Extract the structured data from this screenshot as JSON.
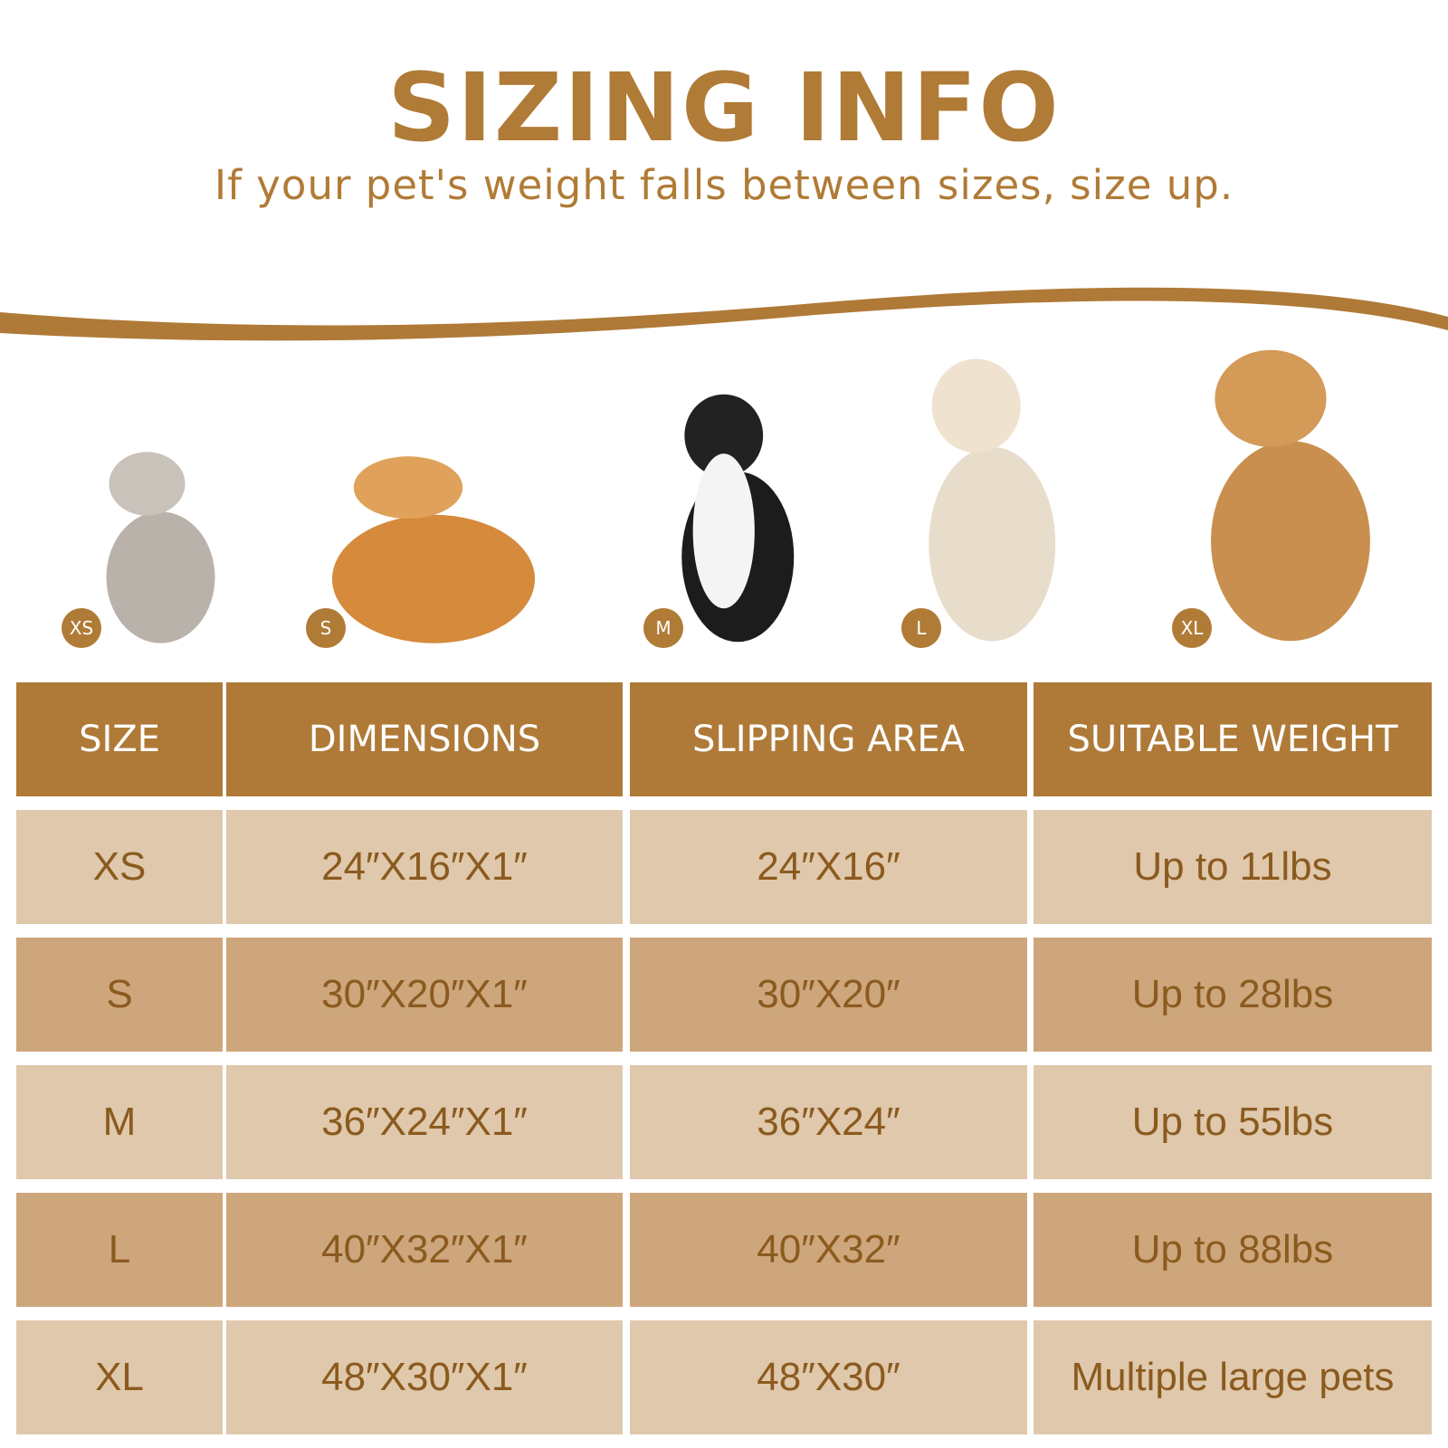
{
  "title": "SIZING INFO",
  "subtitle": "If your pet's weight falls between sizes, size up.",
  "colors": {
    "accent": "#AF7A37",
    "row_light": "#DFC8AB",
    "row_dark": "#CDA67C",
    "cell_text": "#8B5A1E"
  },
  "pets": [
    {
      "badge": "XS",
      "animal": "cat"
    },
    {
      "badge": "S",
      "animal": "corgi"
    },
    {
      "badge": "M",
      "animal": "border-collie"
    },
    {
      "badge": "L",
      "animal": "golden-retriever-light"
    },
    {
      "badge": "XL",
      "animal": "golden-retriever"
    }
  ],
  "table": {
    "headers": [
      "SIZE",
      "DIMENSIONS",
      "SLIPPING AREA",
      "SUITABLE WEIGHT"
    ],
    "rows": [
      [
        "XS",
        "24″X16″X1″",
        "24″X16″",
        "Up to 11lbs"
      ],
      [
        "S",
        "30″X20″X1″",
        "30″X20″",
        "Up to 28lbs"
      ],
      [
        "M",
        "36″X24″X1″",
        "36″X24″",
        "Up to 55lbs"
      ],
      [
        "L",
        "40″X32″X1″",
        "40″X32″",
        "Up to 88lbs"
      ],
      [
        "XL",
        "48″X30″X1″",
        "48″X30″",
        "Multiple large pets"
      ]
    ]
  }
}
